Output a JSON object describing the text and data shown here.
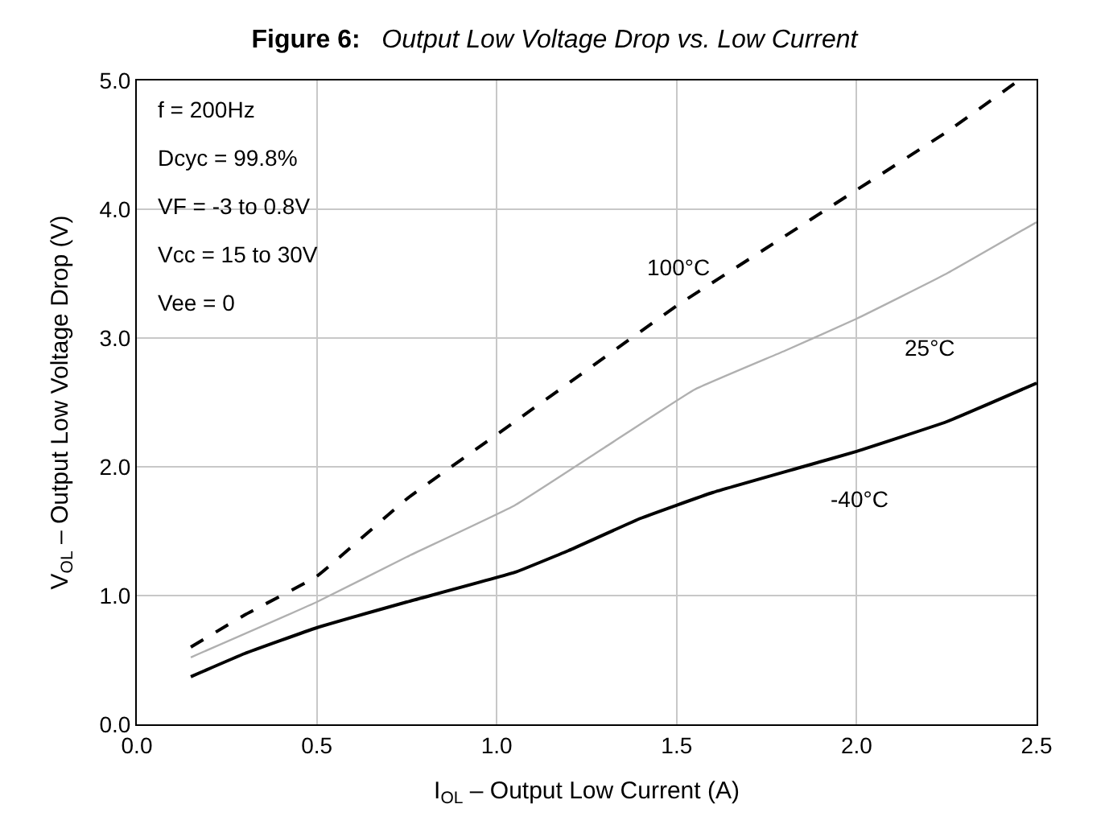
{
  "chart_data": {
    "type": "line",
    "title": "Figure 6:",
    "subtitle": "Output Low Voltage Drop vs. Low Current",
    "xlabel": "I$_{OL}$ – Output Low Current (A)",
    "ylabel": "V$_{OL}$ – Output Low Voltage Drop (V)",
    "annotations": [
      "f = 200Hz",
      "Dcyc = 99.8%",
      "VF = -3 to 0.8V",
      "Vcc = 15 to 30V",
      "Vee = 0"
    ],
    "series": [
      {
        "name": "100°C",
        "color": "#000000",
        "line_style": "dashed",
        "x": [
          0.15,
          0.3,
          0.5,
          0.75,
          1.05,
          1.25,
          1.5,
          1.75,
          2.0,
          2.25,
          2.45
        ],
        "values": [
          0.6,
          0.85,
          1.15,
          1.75,
          2.35,
          2.75,
          3.25,
          3.7,
          4.15,
          4.6,
          5.0
        ]
      },
      {
        "name": "25°C",
        "color": "#b0b0b0",
        "line_style": "solid",
        "x": [
          0.15,
          0.5,
          0.75,
          1.05,
          1.3,
          1.55,
          1.8,
          2.0,
          2.25,
          2.5
        ],
        "values": [
          0.52,
          0.95,
          1.3,
          1.7,
          2.15,
          2.6,
          2.9,
          3.15,
          3.5,
          3.9
        ]
      },
      {
        "name": "-40°C",
        "color": "#000000",
        "line_style": "solid",
        "x": [
          0.15,
          0.3,
          0.5,
          0.75,
          1.05,
          1.2,
          1.4,
          1.6,
          1.85,
          2.0,
          2.25,
          2.5
        ],
        "values": [
          0.37,
          0.55,
          0.75,
          0.95,
          1.18,
          1.35,
          1.6,
          1.8,
          2.0,
          2.12,
          2.35,
          2.65
        ]
      }
    ],
    "xlim": [
      0,
      2.5
    ],
    "xticks": [
      {
        "value": 0,
        "label": "0.0"
      },
      0.5,
      {
        "value": 1,
        "label": "1.0"
      },
      1.5,
      {
        "value": 2,
        "label": "2.0"
      },
      2.5
    ],
    "ylim": [
      0,
      5
    ],
    "yticks": [
      {
        "value": 0,
        "label": "0.0"
      },
      {
        "value": 1,
        "label": "1.0"
      },
      {
        "value": 2,
        "label": "2.0"
      },
      {
        "value": 3,
        "label": "3.0"
      },
      {
        "value": 4,
        "label": "4.0"
      },
      {
        "value": 5,
        "label": "5.0"
      }
    ],
    "grid": true,
    "legend": false
  }
}
